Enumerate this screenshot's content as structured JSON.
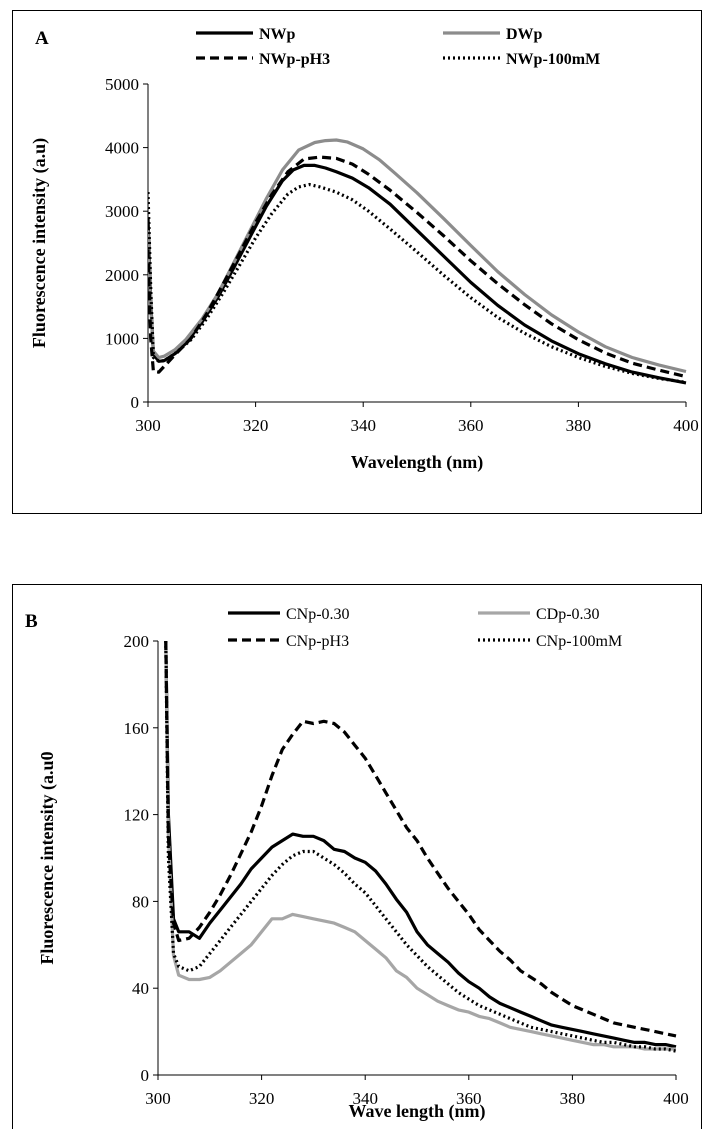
{
  "chart_data": [
    {
      "type": "line",
      "panel_label": "A",
      "xlabel": "Wavelength (nm)",
      "ylabel": "Fluorescence intensity (a.u)",
      "xlim": [
        300,
        400
      ],
      "ylim": [
        0,
        5000
      ],
      "xticks": [
        "300",
        "320",
        "340",
        "360",
        "380",
        "400"
      ],
      "yticks": [
        "0",
        "1000",
        "2000",
        "3000",
        "4000",
        "5000"
      ],
      "legend_bold": true,
      "legend_placement": "top",
      "grid": false,
      "series": [
        {
          "name": "NWp",
          "color": "#000000",
          "dash": "solid",
          "x": [
            300,
            300.5,
            301,
            302,
            303,
            305,
            307,
            310,
            313,
            316,
            319,
            322,
            325,
            327,
            329,
            331,
            333,
            335,
            338,
            341,
            345,
            350,
            355,
            360,
            365,
            370,
            375,
            380,
            385,
            390,
            395,
            400
          ],
          "y": [
            2900,
            1600,
            750,
            640,
            650,
            760,
            920,
            1250,
            1650,
            2120,
            2600,
            3080,
            3480,
            3650,
            3720,
            3720,
            3680,
            3620,
            3520,
            3370,
            3110,
            2700,
            2290,
            1880,
            1520,
            1210,
            960,
            760,
            600,
            470,
            380,
            300
          ]
        },
        {
          "name": "DWp",
          "color": "#8c8c8c",
          "dash": "solid",
          "x": [
            300,
            300.5,
            301,
            302,
            303,
            305,
            307,
            310,
            313,
            316,
            319,
            322,
            325,
            328,
            331,
            333,
            335,
            337,
            340,
            343,
            346,
            350,
            355,
            360,
            365,
            370,
            375,
            380,
            385,
            390,
            395,
            400
          ],
          "y": [
            2700,
            1500,
            800,
            700,
            720,
            820,
            980,
            1300,
            1700,
            2200,
            2700,
            3200,
            3650,
            3960,
            4080,
            4110,
            4120,
            4090,
            3980,
            3810,
            3590,
            3290,
            2880,
            2460,
            2050,
            1690,
            1370,
            1100,
            870,
            700,
            580,
            480
          ]
        },
        {
          "name": "NWp-pH3",
          "color": "#000000",
          "dash": "dash",
          "x": [
            300,
            300.5,
            301,
            302,
            303,
            305,
            308,
            311,
            314,
            317,
            320,
            323,
            326,
            329,
            332,
            335,
            338,
            341,
            345,
            350,
            355,
            360,
            365,
            370,
            375,
            380,
            385,
            390,
            395,
            400
          ],
          "y": [
            2400,
            1000,
            480,
            470,
            560,
            740,
            1000,
            1400,
            1860,
            2340,
            2820,
            3260,
            3620,
            3820,
            3850,
            3830,
            3740,
            3580,
            3330,
            2980,
            2610,
            2220,
            1860,
            1530,
            1230,
            980,
            770,
            610,
            500,
            400
          ]
        },
        {
          "name": "NWp-100mM",
          "color": "#000000",
          "dash": "dot",
          "x": [
            300,
            300.5,
            301,
            302,
            303,
            305,
            308,
            311,
            314,
            317,
            320,
            323,
            326,
            328,
            330,
            332,
            335,
            338,
            341,
            345,
            350,
            355,
            360,
            365,
            370,
            375,
            380,
            385,
            390,
            395,
            400
          ],
          "y": [
            3300,
            1800,
            700,
            640,
            650,
            760,
            980,
            1320,
            1720,
            2150,
            2580,
            2960,
            3270,
            3380,
            3420,
            3380,
            3300,
            3180,
            3000,
            2720,
            2360,
            1990,
            1640,
            1330,
            1080,
            870,
            700,
            560,
            450,
            370,
            310
          ]
        }
      ]
    },
    {
      "type": "line",
      "panel_label": "B",
      "xlabel": "Wave length (nm)",
      "ylabel": "Fluorescence intensity (a.u0",
      "xlim": [
        300,
        400
      ],
      "ylim": [
        0,
        200
      ],
      "xticks": [
        "300",
        "320",
        "340",
        "360",
        "380",
        "400"
      ],
      "yticks": [
        "0",
        "40",
        "80",
        "120",
        "160",
        "200"
      ],
      "legend_bold": false,
      "legend_placement": "top",
      "grid": false,
      "series": [
        {
          "name": "CNp-0.30",
          "color": "#000000",
          "dash": "solid",
          "x": [
            301.5,
            302,
            303,
            304,
            306,
            308,
            310,
            312,
            314,
            316,
            318,
            320,
            322,
            324,
            326,
            328,
            330,
            332,
            334,
            336,
            338,
            340,
            342,
            344,
            346,
            348,
            350,
            352,
            354,
            356,
            358,
            360,
            362,
            364,
            366,
            368,
            370,
            372,
            374,
            376,
            378,
            380,
            382,
            384,
            386,
            388,
            390,
            392,
            394,
            396,
            398,
            400
          ],
          "y": [
            200,
            120,
            72,
            66,
            66,
            63,
            70,
            76,
            82,
            88,
            95,
            100,
            105,
            108,
            111,
            110,
            110,
            108,
            104,
            103,
            100,
            98,
            94,
            88,
            81,
            75,
            66,
            60,
            56,
            52,
            47,
            43,
            40,
            36,
            33,
            31,
            29,
            27,
            25,
            23,
            22,
            21,
            20,
            19,
            18,
            17,
            16,
            15,
            15,
            14,
            14,
            13
          ]
        },
        {
          "name": "CDp-0.30",
          "color": "#a6a6a6",
          "dash": "solid",
          "x": [
            301.5,
            302,
            303,
            304,
            306,
            308,
            310,
            312,
            314,
            316,
            318,
            320,
            322,
            324,
            326,
            328,
            330,
            332,
            334,
            336,
            338,
            340,
            342,
            344,
            346,
            348,
            350,
            352,
            354,
            356,
            358,
            360,
            362,
            364,
            366,
            368,
            370,
            372,
            374,
            376,
            378,
            380,
            382,
            384,
            386,
            388,
            390,
            392,
            394,
            396,
            398,
            400
          ],
          "y": [
            200,
            110,
            55,
            46,
            44,
            44,
            45,
            48,
            52,
            56,
            60,
            66,
            72,
            72,
            74,
            73,
            72,
            71,
            70,
            68,
            66,
            62,
            58,
            54,
            48,
            45,
            40,
            37,
            34,
            32,
            30,
            29,
            27,
            26,
            24,
            22,
            21,
            20,
            19,
            18,
            17,
            16,
            15,
            14,
            14,
            13,
            13,
            13,
            12,
            12,
            12,
            12
          ]
        },
        {
          "name": "CNp-pH3",
          "color": "#000000",
          "dash": "dash",
          "x": [
            301.5,
            302,
            303,
            304,
            306,
            308,
            310,
            312,
            314,
            316,
            318,
            320,
            322,
            324,
            326,
            328,
            330,
            332,
            334,
            336,
            338,
            340,
            342,
            344,
            346,
            348,
            350,
            352,
            354,
            356,
            358,
            360,
            362,
            364,
            366,
            368,
            370,
            372,
            374,
            376,
            378,
            380,
            382,
            384,
            386,
            388,
            390,
            392,
            394,
            396,
            398,
            400
          ],
          "y": [
            200,
            110,
            70,
            62,
            63,
            68,
            75,
            83,
            92,
            102,
            112,
            124,
            138,
            150,
            157,
            163,
            162,
            163,
            162,
            158,
            152,
            146,
            138,
            130,
            122,
            114,
            108,
            100,
            93,
            86,
            80,
            74,
            67,
            62,
            57,
            53,
            48,
            45,
            42,
            38,
            35,
            32,
            30,
            28,
            26,
            24,
            23,
            22,
            21,
            20,
            19,
            18
          ]
        },
        {
          "name": "CNp-100mM",
          "color": "#000000",
          "dash": "dot",
          "x": [
            301.5,
            302,
            303,
            304,
            306,
            308,
            310,
            312,
            314,
            316,
            318,
            320,
            322,
            324,
            326,
            328,
            330,
            332,
            334,
            336,
            338,
            340,
            342,
            344,
            346,
            348,
            350,
            352,
            354,
            356,
            358,
            360,
            362,
            364,
            366,
            368,
            370,
            372,
            374,
            376,
            378,
            380,
            382,
            384,
            386,
            388,
            390,
            392,
            394,
            396,
            398,
            400
          ],
          "y": [
            200,
            100,
            56,
            50,
            48,
            50,
            56,
            62,
            68,
            74,
            80,
            86,
            92,
            97,
            101,
            103,
            103,
            100,
            97,
            93,
            88,
            84,
            78,
            72,
            66,
            60,
            55,
            50,
            46,
            42,
            38,
            35,
            32,
            30,
            28,
            26,
            24,
            22,
            21,
            20,
            19,
            18,
            17,
            16,
            15,
            15,
            14,
            13,
            13,
            12,
            12,
            11
          ]
        }
      ]
    }
  ]
}
